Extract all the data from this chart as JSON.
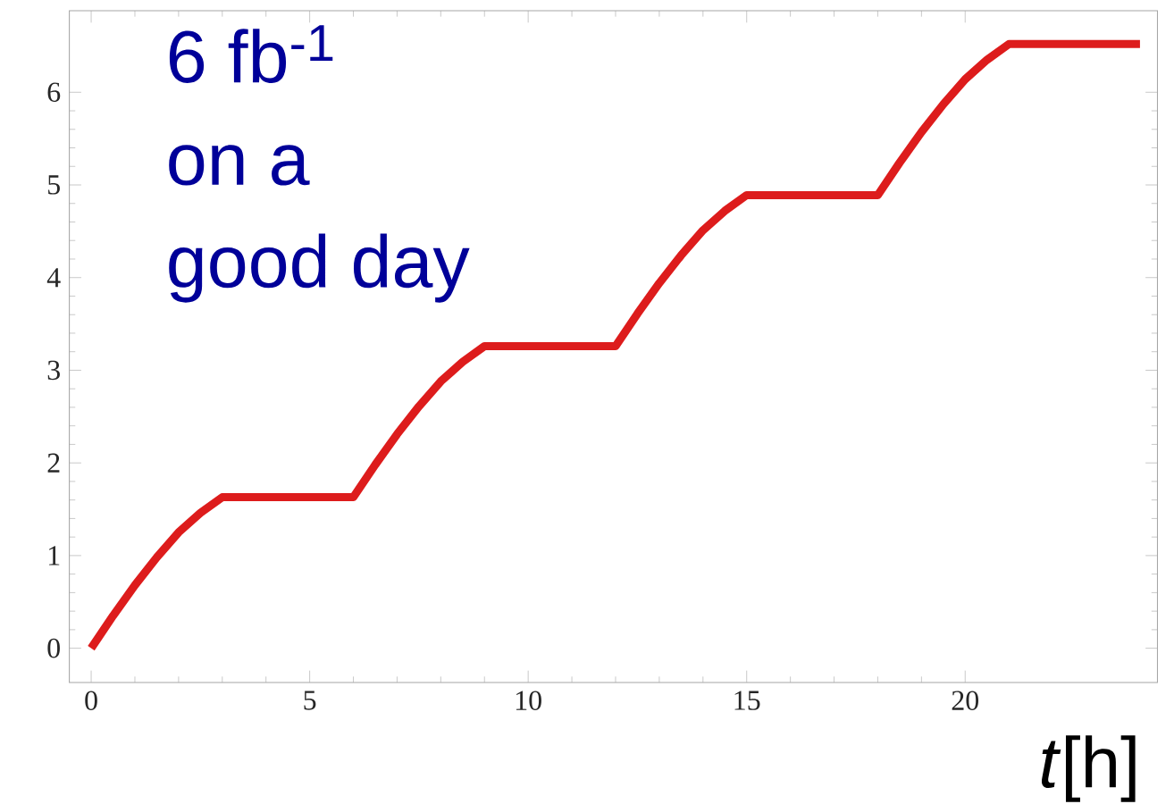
{
  "chart_data": {
    "type": "line",
    "xlabel": "*t*[h]",
    "annotations": [
      "6 fb$^{-1}$",
      "on a",
      "good day"
    ],
    "x": [
      0,
      0.5,
      1,
      1.5,
      2,
      2.5,
      3,
      6,
      6.5,
      7,
      7.5,
      8,
      8.5,
      9,
      12,
      12.5,
      13,
      13.5,
      14,
      14.5,
      15,
      18,
      18.5,
      19,
      19.5,
      20,
      20.5,
      21,
      24
    ],
    "values": [
      0,
      0.35,
      0.68,
      0.98,
      1.25,
      1.46,
      1.63,
      1.63,
      1.98,
      2.31,
      2.61,
      2.88,
      3.09,
      3.26,
      3.26,
      3.61,
      3.94,
      4.24,
      4.51,
      4.72,
      4.89,
      4.89,
      5.24,
      5.57,
      5.87,
      6.14,
      6.35,
      6.52,
      6.52
    ],
    "color": "#dd1c1c",
    "marker": "none",
    "line_style": "solid",
    "xlim": [
      -0.5,
      24.4
    ],
    "ylim": [
      -0.37,
      6.88
    ],
    "xticks": [
      0,
      5,
      10,
      15,
      20
    ],
    "yticks": [
      0,
      1,
      2,
      3,
      4,
      5,
      6
    ]
  }
}
